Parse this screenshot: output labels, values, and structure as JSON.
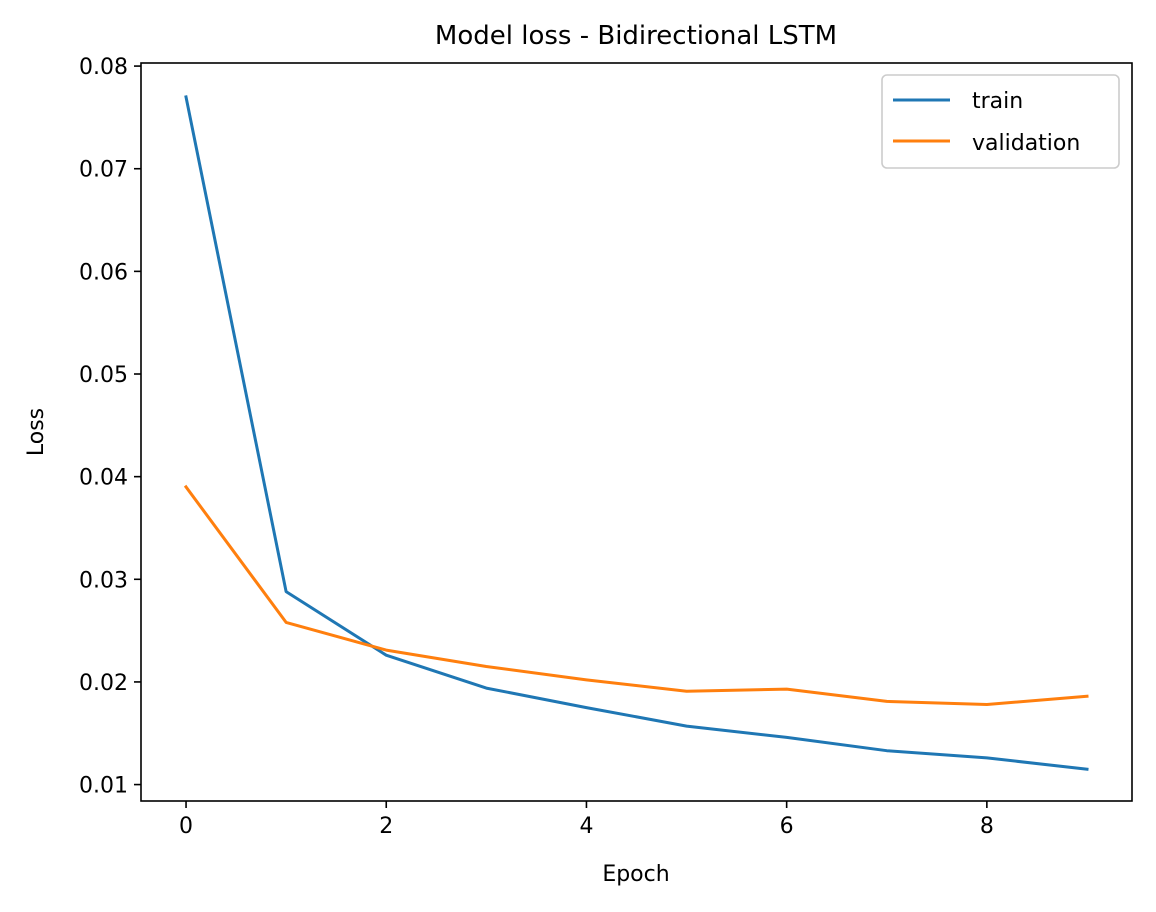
{
  "chart_data": {
    "type": "line",
    "title": "Model loss - Bidirectional LSTM",
    "xlabel": "Epoch",
    "ylabel": "Loss",
    "x": [
      0,
      1,
      2,
      3,
      4,
      5,
      6,
      7,
      8,
      9
    ],
    "xlim": [
      -0.45,
      9.45
    ],
    "ylim": [
      0.0084,
      0.0803
    ],
    "xticks": [
      0,
      2,
      4,
      6,
      8
    ],
    "xtick_labels": [
      "0",
      "2",
      "4",
      "6",
      "8"
    ],
    "yticks": [
      0.01,
      0.02,
      0.03,
      0.04,
      0.05,
      0.06,
      0.07,
      0.08
    ],
    "ytick_labels": [
      "0.01",
      "0.02",
      "0.03",
      "0.04",
      "0.05",
      "0.06",
      "0.07",
      "0.08"
    ],
    "grid": false,
    "legend_position": "upper right",
    "series": [
      {
        "name": "train",
        "color": "#1f77b4",
        "values": [
          0.077,
          0.0288,
          0.0226,
          0.0194,
          0.0175,
          0.0157,
          0.0146,
          0.0133,
          0.0126,
          0.0115
        ]
      },
      {
        "name": "validation",
        "color": "#ff7f0e",
        "values": [
          0.039,
          0.0258,
          0.0231,
          0.0215,
          0.0202,
          0.0191,
          0.0193,
          0.0181,
          0.0178,
          0.0186
        ]
      }
    ]
  }
}
